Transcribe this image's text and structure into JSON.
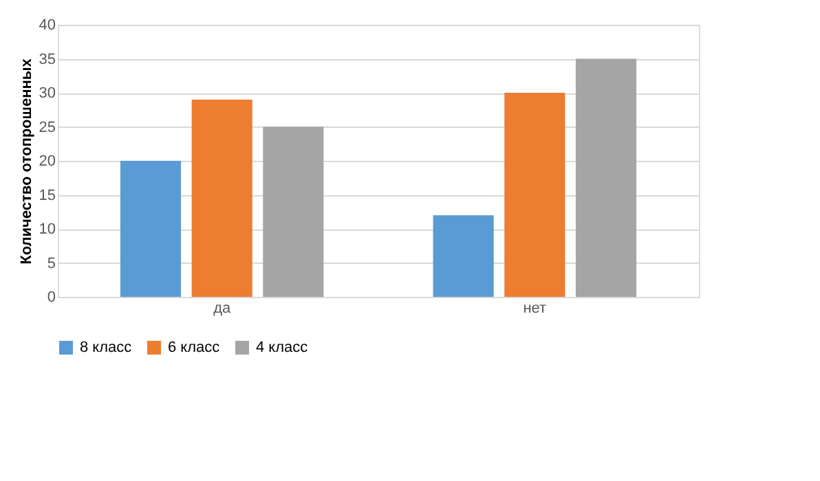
{
  "chart_data": {
    "type": "bar",
    "ylabel": "Количество отопрошенных",
    "categories": [
      "да",
      "нет"
    ],
    "series": [
      {
        "name": "8 класс",
        "color": "#5b9bd5",
        "values": [
          20,
          12
        ]
      },
      {
        "name": "6 класс",
        "color": "#ed7d31",
        "values": [
          29,
          30
        ]
      },
      {
        "name": "4 класс",
        "color": "#a5a5a5",
        "values": [
          25,
          35
        ]
      }
    ],
    "ylim": [
      0,
      40
    ],
    "yticks": [
      0,
      5,
      10,
      15,
      20,
      25,
      30,
      35,
      40
    ],
    "grid": "y",
    "legend": "bottom"
  }
}
